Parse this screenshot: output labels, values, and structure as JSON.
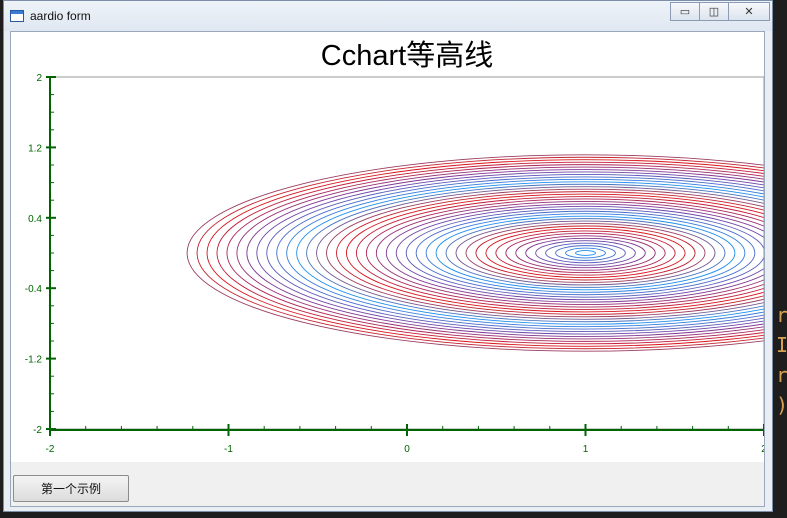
{
  "window": {
    "title": "aardio form",
    "minimize_glyph": "▭",
    "maximize_glyph": "◫",
    "close_glyph": "✕"
  },
  "background_editor": {
    "lines": [
      "r",
      "I",
      "r",
      ")"
    ]
  },
  "button": {
    "label": "第一个示例"
  },
  "chart_data": {
    "type": "contour",
    "title": "Cchart等高线",
    "xlabel": "",
    "ylabel": "",
    "xlim": [
      -2,
      2
    ],
    "ylim": [
      -2,
      2
    ],
    "x_ticks": [
      "-2",
      "-1",
      "0",
      "1",
      "2"
    ],
    "y_ticks": [
      "2",
      "1.2",
      "0.4",
      "-0.4",
      "-1.2",
      "-2"
    ],
    "center": [
      1,
      0
    ],
    "x_semi_axis_per_level": 0.0558,
    "y_semi_axis_per_level": 0.0279,
    "levels": 40,
    "colormap": [
      "#1f8ff0",
      "#7a3a9e",
      "#e01010"
    ],
    "axis_color": "#006400",
    "grid": false
  }
}
